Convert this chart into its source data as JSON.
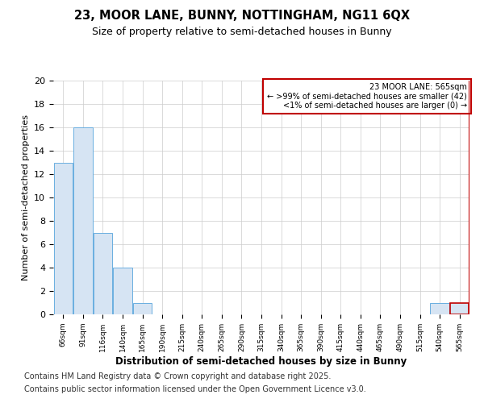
{
  "title1": "23, MOOR LANE, BUNNY, NOTTINGHAM, NG11 6QX",
  "title2": "Size of property relative to semi-detached houses in Bunny",
  "xlabel": "Distribution of semi-detached houses by size in Bunny",
  "ylabel": "Number of semi-detached properties",
  "categories": [
    "66sqm",
    "91sqm",
    "116sqm",
    "140sqm",
    "165sqm",
    "190sqm",
    "215sqm",
    "240sqm",
    "265sqm",
    "290sqm",
    "315sqm",
    "340sqm",
    "365sqm",
    "390sqm",
    "415sqm",
    "440sqm",
    "465sqm",
    "490sqm",
    "515sqm",
    "540sqm",
    "565sqm"
  ],
  "values": [
    13,
    16,
    7,
    4,
    1,
    0,
    0,
    0,
    0,
    0,
    0,
    0,
    0,
    0,
    0,
    0,
    0,
    0,
    0,
    1,
    1
  ],
  "bar_color": "#d6e4f3",
  "bar_edge_color": "#6aaee0",
  "highlight_bar_index": 20,
  "highlight_bar_edge_color": "#c00000",
  "legend_box_edge_color": "#c00000",
  "legend_title": "23 MOOR LANE: 565sqm",
  "legend_line1": "← >99% of semi-detached houses are smaller (42)",
  "legend_line2": "<1% of semi-detached houses are larger (0) →",
  "ylim": [
    0,
    20
  ],
  "yticks": [
    0,
    2,
    4,
    6,
    8,
    10,
    12,
    14,
    16,
    18,
    20
  ],
  "footer1": "Contains HM Land Registry data © Crown copyright and database right 2025.",
  "footer2": "Contains public sector information licensed under the Open Government Licence v3.0.",
  "background_color": "#ffffff",
  "plot_background_color": "#ffffff"
}
